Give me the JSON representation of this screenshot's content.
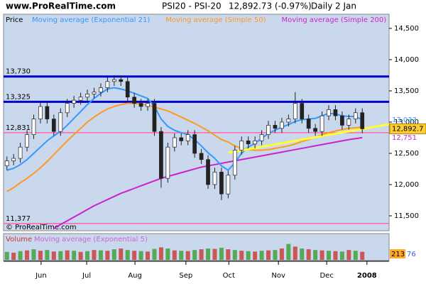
{
  "chart_data": {
    "type": "candlestick",
    "site": "www.ProRealTime.com",
    "instrument": "PSI20 - PSI-20",
    "last_quote": "12,892.73 (-0.97%)",
    "period": "Daily",
    "date": "2 Jan",
    "price_label": "Price",
    "watermark": "© ProRealTime.com",
    "x": [
      0,
      1,
      2,
      3,
      4,
      5,
      6,
      7,
      8,
      9,
      10,
      11,
      12,
      13,
      14,
      15,
      16,
      17,
      18,
      19,
      20,
      21,
      22,
      23,
      24,
      25,
      26,
      27,
      28,
      29,
      30,
      31,
      32,
      33,
      34,
      35,
      36,
      37,
      38,
      39,
      40,
      41,
      42,
      43,
      44,
      45,
      46,
      47,
      48,
      49,
      50,
      51,
      52,
      53
    ],
    "xlim": [
      -0.5,
      57
    ],
    "xticks": [
      {
        "value": 5.1,
        "label": "Jun"
      },
      {
        "value": 11.9,
        "label": "Jul"
      },
      {
        "value": 19.1,
        "label": "Aug"
      },
      {
        "value": 26.7,
        "label": "Sep"
      },
      {
        "value": 33.1,
        "label": "Oct"
      },
      {
        "value": 40.5,
        "label": "Nov"
      },
      {
        "value": 47.7,
        "label": "Dec"
      },
      {
        "value": 53.7,
        "label": "2008"
      }
    ],
    "ylim": [
      11261,
      14727
    ],
    "yticks": [
      {
        "value": 11500,
        "label": "11,500"
      },
      {
        "value": 12000,
        "label": "12,000"
      },
      {
        "value": 12500,
        "label": "12,500"
      },
      {
        "value": 13000,
        "label": "13,000"
      },
      {
        "value": 13500,
        "label": "13,500"
      },
      {
        "value": 14000,
        "label": "14,000"
      },
      {
        "value": 14500,
        "label": "14,500"
      }
    ],
    "up_color": "#ffffff",
    "down_color": "#222222",
    "open": [
      12300,
      12380,
      12420,
      12600,
      12800,
      13050,
      13250,
      13050,
      12850,
      13150,
      13300,
      13350,
      13400,
      13450,
      13480,
      13550,
      13650,
      13680,
      13650,
      13400,
      13300,
      13250,
      13300,
      12850,
      12100,
      12600,
      12750,
      12700,
      12800,
      12500,
      12400,
      12000,
      12200,
      11850,
      12150,
      12550,
      12700,
      12650,
      12700,
      12800,
      12950,
      12900,
      13000,
      13050,
      13300,
      13050,
      12900,
      12850,
      13100,
      13200,
      13100,
      12950,
      13050,
      13150
    ],
    "high": [
      12450,
      12490,
      12670,
      12870,
      13120,
      13320,
      13320,
      13120,
      13220,
      13370,
      13420,
      13470,
      13520,
      13550,
      13620,
      13720,
      13750,
      13750,
      13720,
      13470,
      13370,
      13370,
      13370,
      12920,
      12670,
      12820,
      12820,
      12870,
      12870,
      12570,
      12470,
      12270,
      12270,
      12220,
      12620,
      12770,
      12770,
      12770,
      12870,
      13020,
      13020,
      13070,
      13120,
      13480,
      13370,
      13120,
      12970,
      13170,
      13270,
      13270,
      13170,
      13120,
      13220,
      13220
    ],
    "low": [
      12230,
      12310,
      12350,
      12530,
      12730,
      12980,
      12980,
      12780,
      12780,
      13080,
      13230,
      13280,
      13330,
      13380,
      13410,
      13480,
      13580,
      13580,
      13330,
      13230,
      13180,
      13180,
      12780,
      11950,
      12030,
      12530,
      12630,
      12630,
      12430,
      12330,
      11930,
      11930,
      11750,
      11780,
      12080,
      12480,
      12580,
      12580,
      12630,
      12730,
      12830,
      12830,
      12930,
      12980,
      12980,
      12830,
      12780,
      12780,
      13030,
      13030,
      12880,
      12880,
      12980,
      12823
    ],
    "close": [
      12380,
      12420,
      12600,
      12800,
      13050,
      13250,
      13050,
      12850,
      13150,
      13300,
      13350,
      13400,
      13450,
      13480,
      13550,
      13650,
      13680,
      13650,
      13400,
      13300,
      13250,
      13300,
      12850,
      12100,
      12600,
      12750,
      12700,
      12800,
      12500,
      12400,
      12000,
      12200,
      11850,
      12150,
      12550,
      12700,
      12650,
      12700,
      12800,
      12950,
      12900,
      13000,
      13050,
      13300,
      13050,
      12900,
      12850,
      13100,
      13200,
      13100,
      12950,
      13050,
      13150,
      12892.7
    ],
    "close_label": "12,892.7",
    "series": [
      {
        "name": "Moving average (Exponential 21)",
        "color": "#3399ff",
        "last_label": "13,033",
        "values": [
          12230,
          12260,
          12320,
          12400,
          12500,
          12600,
          12700,
          12780,
          12850,
          12950,
          13060,
          13170,
          13280,
          13380,
          13460,
          13530,
          13550,
          13530,
          13500,
          13460,
          13420,
          13380,
          13250,
          13050,
          12930,
          12870,
          12830,
          12800,
          12720,
          12620,
          12510,
          12420,
          12300,
          12230,
          12350,
          12500,
          12600,
          12660,
          12740,
          12820,
          12870,
          12920,
          12960,
          13010,
          13040,
          13050,
          13060,
          13100,
          13140,
          13130,
          13100,
          13090,
          13090,
          13033
        ]
      },
      {
        "name": "Moving average (Simple 50)",
        "color": "#ff9922",
        "values": [
          11890,
          11950,
          12030,
          12100,
          12180,
          12270,
          12370,
          12480,
          12590,
          12700,
          12800,
          12900,
          13000,
          13080,
          13150,
          13210,
          13250,
          13280,
          13300,
          13300,
          13290,
          13270,
          13240,
          13210,
          13180,
          13130,
          13080,
          13030,
          12980,
          12920,
          12860,
          12790,
          12720,
          12680,
          12620,
          12580,
          12560,
          12550,
          12550,
          12560,
          12580,
          12600,
          12620,
          12650,
          12690,
          12720,
          12760,
          12800,
          12830,
          12860,
          12880,
          12900,
          12910,
          12920
        ]
      },
      {
        "name": "Moving average (Simple 200)",
        "color": "#cc22cc",
        "last_label": "12,751",
        "values": [
          null,
          null,
          null,
          null,
          null,
          null,
          null,
          11300,
          11360,
          11420,
          11480,
          11540,
          11600,
          11660,
          11710,
          11760,
          11810,
          11860,
          11900,
          11940,
          11980,
          12020,
          12060,
          12100,
          12130,
          12160,
          12190,
          12220,
          12250,
          12280,
          12300,
          12320,
          12340,
          12360,
          12380,
          12400,
          12420,
          12440,
          12460,
          12480,
          12500,
          12520,
          12540,
          12560,
          12580,
          12600,
          12620,
          12640,
          12660,
          12680,
          12700,
          12720,
          12735,
          12751
        ]
      }
    ],
    "levels": [
      {
        "value": 13730,
        "label": "13,730",
        "color": "#0000cc"
      },
      {
        "value": 13325,
        "label": "13,325",
        "color": "#0000cc"
      },
      {
        "value": 12831,
        "label": "12,831",
        "color": "#ff66aa"
      },
      {
        "value": 11377,
        "label": "11,377",
        "color": "#ff66aa"
      }
    ],
    "trendline": {
      "x": [
        33,
        57
      ],
      "values": [
        12510,
        12966
      ],
      "color": "#ffff33"
    },
    "volume": {
      "title": "Volume",
      "ma_name": "Moving average (Exponential 5)",
      "color": "#cc66cc",
      "ylim": [
        0,
        450
      ],
      "values": [
        210,
        190,
        230,
        250,
        280,
        240,
        260,
        220,
        230,
        250,
        240,
        210,
        230,
        260,
        250,
        240,
        280,
        300,
        260,
        240,
        230,
        220,
        290,
        330,
        300,
        250,
        240,
        230,
        260,
        280,
        300,
        290,
        320,
        280,
        260,
        240,
        230,
        220,
        240,
        250,
        260,
        300,
        420,
        350,
        300,
        280,
        260,
        250,
        240,
        230,
        220,
        260,
        240,
        213
      ],
      "last_value": 213,
      "ma_last_value": 76
    }
  }
}
